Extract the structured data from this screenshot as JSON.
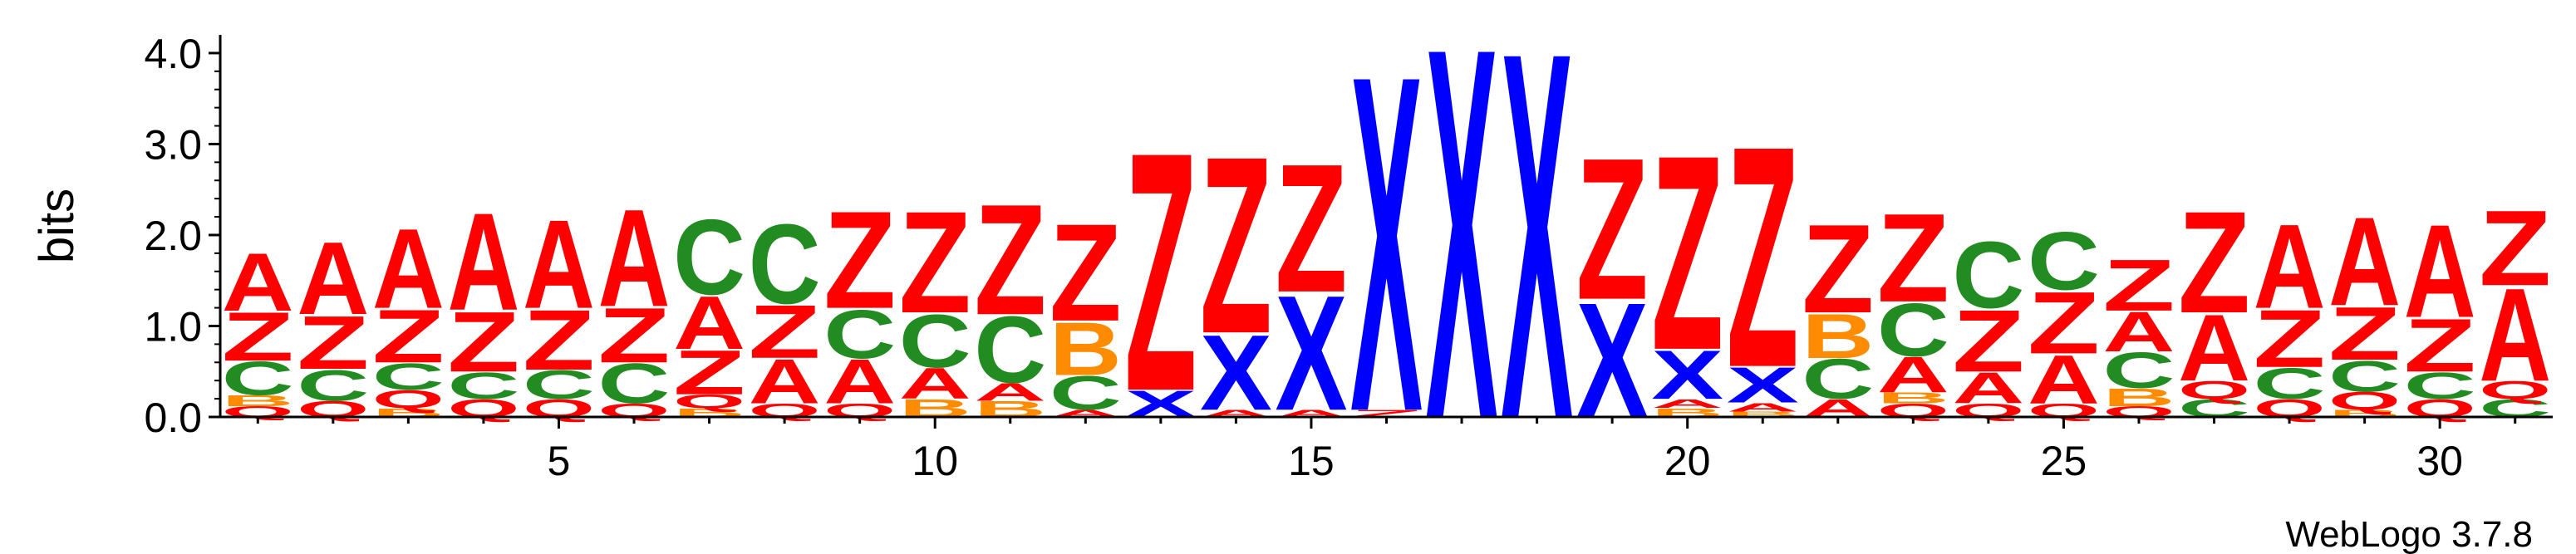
{
  "chart_data": {
    "type": "sequence-logo",
    "ylabel": "bits",
    "ylim": [
      0,
      4.2
    ],
    "yticks": [
      "0.0",
      "1.0",
      "2.0",
      "3.0",
      "4.0"
    ],
    "xticks": [
      "5",
      "10",
      "15",
      "20",
      "25",
      "30"
    ],
    "positions": 31,
    "footer": "WebLogo 3.7.8",
    "colors": {
      "A": "#ff0000",
      "Z": "#ff0000",
      "Q": "#ff0000",
      "C": "#228b22",
      "B": "#ff8c00",
      "X": "#0000ff"
    },
    "stacks": [
      [
        [
          "Q",
          0.12
        ],
        [
          "B",
          0.12
        ],
        [
          "C",
          0.38
        ],
        [
          "Z",
          0.55
        ],
        [
          "A",
          0.65
        ]
      ],
      [
        [
          "Q",
          0.18
        ],
        [
          "C",
          0.35
        ],
        [
          "Z",
          0.6
        ],
        [
          "A",
          0.82
        ]
      ],
      [
        [
          "B",
          0.1
        ],
        [
          "Q",
          0.2
        ],
        [
          "C",
          0.3
        ],
        [
          "Z",
          0.6
        ],
        [
          "A",
          0.9
        ]
      ],
      [
        [
          "Q",
          0.2
        ],
        [
          "C",
          0.3
        ],
        [
          "Z",
          0.68
        ],
        [
          "A",
          1.1
        ]
      ],
      [
        [
          "Q",
          0.2
        ],
        [
          "C",
          0.32
        ],
        [
          "Z",
          0.68
        ],
        [
          "A",
          1.0
        ]
      ],
      [
        [
          "Q",
          0.15
        ],
        [
          "C",
          0.45
        ],
        [
          "Z",
          0.62
        ],
        [
          "A",
          1.1
        ]
      ],
      [
        [
          "B",
          0.1
        ],
        [
          "Q",
          0.15
        ],
        [
          "Z",
          0.5
        ],
        [
          "A",
          0.6
        ],
        [
          "C",
          0.85
        ]
      ],
      [
        [
          "Q",
          0.15
        ],
        [
          "A",
          0.5
        ],
        [
          "Z",
          0.6
        ],
        [
          "C",
          0.9
        ]
      ],
      [
        [
          "Q",
          0.15
        ],
        [
          "A",
          0.5
        ],
        [
          "C",
          0.55
        ],
        [
          "Z",
          1.1
        ]
      ],
      [
        [
          "B",
          0.2
        ],
        [
          "A",
          0.35
        ],
        [
          "C",
          0.6
        ],
        [
          "Z",
          1.15
        ]
      ],
      [
        [
          "B",
          0.18
        ],
        [
          "A",
          0.2
        ],
        [
          "C",
          0.75
        ],
        [
          "Z",
          1.25
        ]
      ],
      [
        [
          "A",
          0.08
        ],
        [
          "C",
          0.38
        ],
        [
          "B",
          0.6
        ],
        [
          "Z",
          1.1
        ]
      ],
      [
        [
          "X",
          0.3
        ],
        [
          "Z",
          2.7
        ]
      ],
      [
        [
          "A",
          0.08
        ],
        [
          "X",
          0.85
        ],
        [
          "Z",
          2.0
        ]
      ],
      [
        [
          "A",
          0.08
        ],
        [
          "X",
          1.3
        ],
        [
          "Z",
          1.45
        ]
      ],
      [
        [
          "Z",
          0.08
        ],
        [
          "X",
          3.8
        ]
      ],
      [
        [
          "X",
          4.2
        ]
      ],
      [
        [
          "X",
          4.15
        ]
      ],
      [
        [
          "X",
          1.3
        ],
        [
          "Z",
          1.6
        ]
      ],
      [
        [
          "B",
          0.1
        ],
        [
          "A",
          0.1
        ],
        [
          "X",
          0.55
        ],
        [
          "Z",
          2.2
        ]
      ],
      [
        [
          "B",
          0.06
        ],
        [
          "A",
          0.1
        ],
        [
          "X",
          0.4
        ],
        [
          "Z",
          2.5
        ]
      ],
      [
        [
          "A",
          0.2
        ],
        [
          "C",
          0.45
        ],
        [
          "B",
          0.5
        ],
        [
          "Z",
          1.0
        ]
      ],
      [
        [
          "Q",
          0.15
        ],
        [
          "B",
          0.12
        ],
        [
          "A",
          0.4
        ],
        [
          "C",
          0.6
        ],
        [
          "Z",
          1.0
        ]
      ],
      [
        [
          "Q",
          0.15
        ],
        [
          "A",
          0.35
        ],
        [
          "Z",
          0.7
        ],
        [
          "C",
          0.75
        ]
      ],
      [
        [
          "Q",
          0.15
        ],
        [
          "A",
          0.55
        ],
        [
          "Z",
          0.7
        ],
        [
          "C",
          0.65
        ]
      ],
      [
        [
          "Q",
          0.12
        ],
        [
          "B",
          0.2
        ],
        [
          "C",
          0.4
        ],
        [
          "A",
          0.45
        ],
        [
          "Z",
          0.58
        ]
      ],
      [
        [
          "C",
          0.2
        ],
        [
          "Q",
          0.2
        ],
        [
          "A",
          0.75
        ],
        [
          "Z",
          1.15
        ]
      ],
      [
        [
          "Q",
          0.2
        ],
        [
          "C",
          0.35
        ],
        [
          "Z",
          0.65
        ],
        [
          "A",
          0.95
        ]
      ],
      [
        [
          "B",
          0.08
        ],
        [
          "Q",
          0.2
        ],
        [
          "C",
          0.35
        ],
        [
          "Z",
          0.6
        ],
        [
          "A",
          1.0
        ]
      ],
      [
        [
          "Q",
          0.2
        ],
        [
          "C",
          0.3
        ],
        [
          "Z",
          0.6
        ],
        [
          "A",
          1.05
        ]
      ],
      [
        [
          "C",
          0.2
        ],
        [
          "Q",
          0.2
        ],
        [
          "A",
          1.05
        ],
        [
          "Z",
          0.85
        ]
      ]
    ]
  }
}
